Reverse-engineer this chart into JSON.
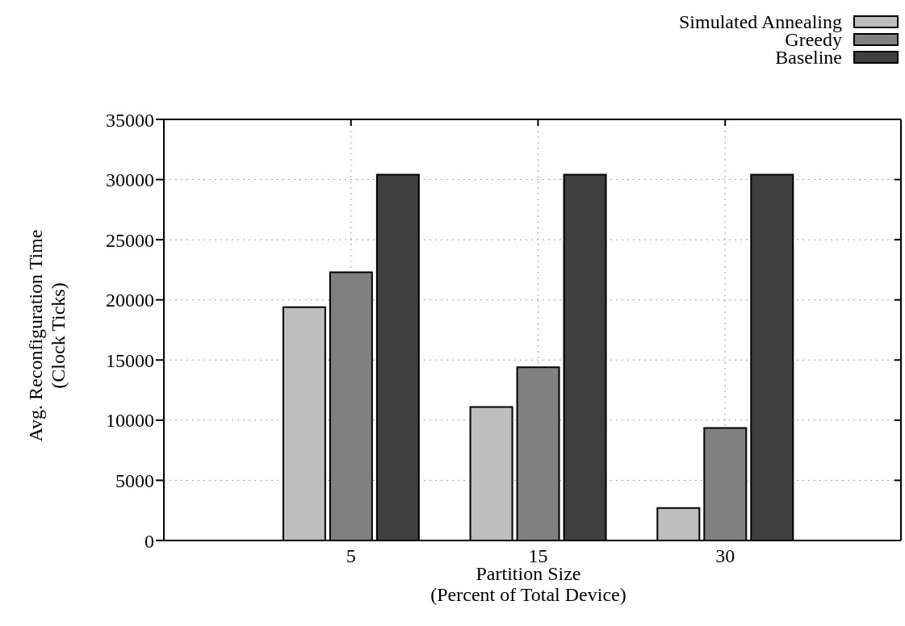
{
  "chart_data": {
    "type": "bar",
    "xlabel": "Partition Size\n(Percent of Total Device)",
    "ylabel": "Avg. Reconfiguration Time\n(Clock Ticks)",
    "categories": [
      "5",
      "15",
      "30"
    ],
    "series": [
      {
        "name": "Simulated Annealing",
        "color": "#bebebe",
        "values": [
          19400,
          11100,
          2700
        ]
      },
      {
        "name": "Greedy",
        "color": "#808080",
        "values": [
          22300,
          14400,
          9350
        ]
      },
      {
        "name": "Baseline",
        "color": "#404040",
        "values": [
          30400,
          30400,
          30400
        ]
      }
    ],
    "ylim": [
      0,
      35000
    ],
    "yticks": [
      0,
      5000,
      10000,
      15000,
      20000,
      25000,
      30000,
      35000
    ],
    "grid": true,
    "legend": "top right"
  }
}
